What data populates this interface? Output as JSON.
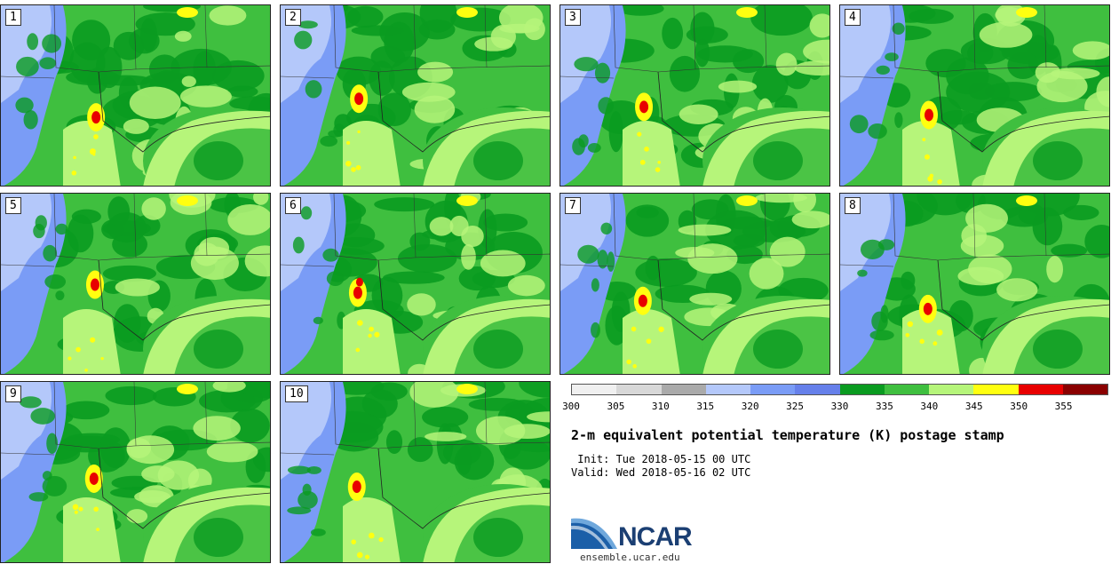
{
  "panels": [
    {
      "label": "1",
      "red_blobs": 1
    },
    {
      "label": "2",
      "red_blobs": 1
    },
    {
      "label": "3",
      "red_blobs": 1
    },
    {
      "label": "4",
      "red_blobs": 1
    },
    {
      "label": "5",
      "red_blobs": 1
    },
    {
      "label": "6",
      "red_blobs": 2
    },
    {
      "label": "7",
      "red_blobs": 1
    },
    {
      "label": "8",
      "red_blobs": 1
    },
    {
      "label": "9",
      "red_blobs": 1
    },
    {
      "label": "10",
      "red_blobs": 1
    }
  ],
  "colorbar": {
    "colors": [
      "#f0f0f0",
      "#d8d8d8",
      "#aaaaaa",
      "#b4c8fa",
      "#7a9cf6",
      "#6680ea",
      "#0a9b20",
      "#3fbf3f",
      "#b6f57a",
      "#ffff10",
      "#e80000",
      "#8a0000"
    ],
    "ticks": [
      "300",
      "305",
      "310",
      "315",
      "320",
      "325",
      "330",
      "335",
      "340",
      "345",
      "350",
      "355"
    ]
  },
  "title": "2-m equivalent potential temperature (K) postage stamp",
  "init": " Init: Tue 2018-05-15 00 UTC",
  "valid": "Valid: Wed 2018-05-16 02 UTC",
  "logo": {
    "text": "NCAR",
    "url": "ensemble.ucar.edu"
  }
}
